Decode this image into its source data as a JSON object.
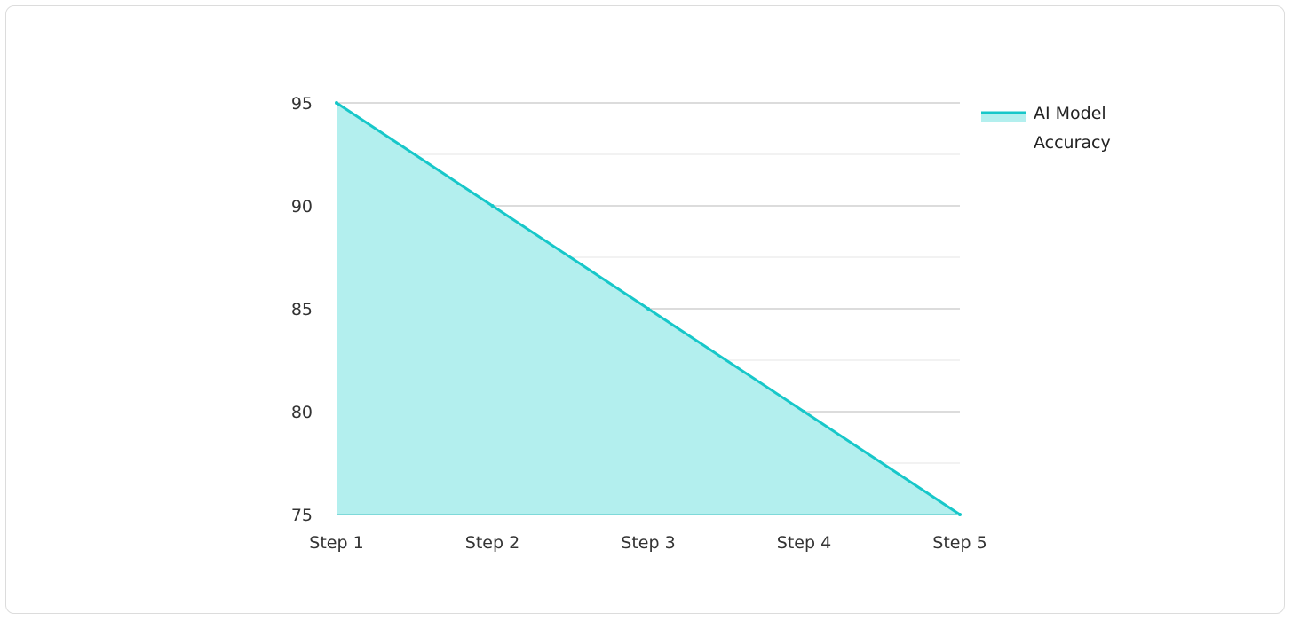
{
  "chart_data": {
    "type": "area",
    "categories": [
      "Step 1",
      "Step 2",
      "Step 3",
      "Step 4",
      "Step 5"
    ],
    "series": [
      {
        "name": "AI Model Accuracy",
        "values": [
          95,
          90,
          85,
          80,
          75
        ],
        "line_color": "#17c7c9",
        "fill_color": "#b3efee"
      }
    ],
    "ylim": [
      75,
      95
    ],
    "y_ticks": [
      75,
      80,
      85,
      90,
      95
    ],
    "y_minor_step": 2.5,
    "grid": true,
    "legend": "top-right",
    "legend_lines": [
      "AI Model",
      "Accuracy"
    ]
  }
}
